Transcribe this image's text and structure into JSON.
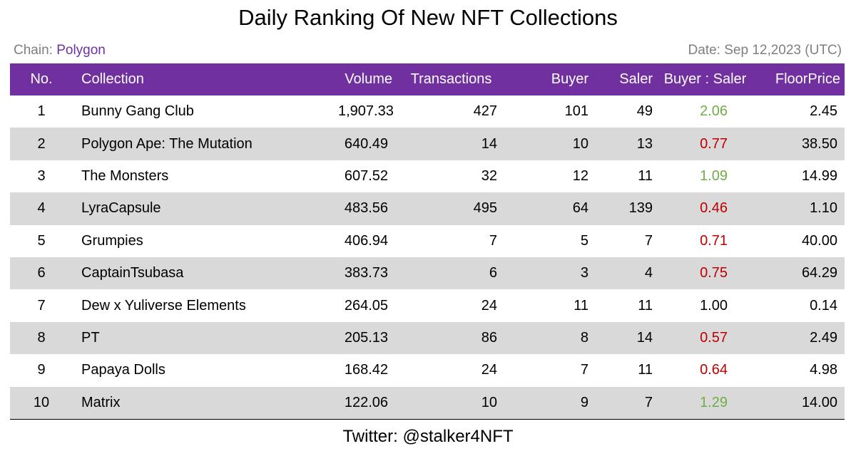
{
  "title": "Daily Ranking Of New NFT Collections",
  "chain": {
    "label": "Chain: ",
    "value": "Polygon"
  },
  "date": "Date: Sep 12,2023 (UTC)",
  "colors": {
    "header_bg": "#7030a0",
    "chain_value": "#7030a0",
    "meta_text": "#7f7f7f",
    "row_alt": "#d9d9d9",
    "ratio_up": "#70ad47",
    "ratio_down": "#c00000"
  },
  "table": {
    "columns": [
      "No.",
      "Collection",
      "Volume",
      "Transactions",
      "Buyer",
      "Saler",
      "Buyer : Saler",
      "FloorPrice"
    ],
    "rows": [
      {
        "no": "1",
        "collection": "Bunny Gang Club",
        "volume": "1,907.33",
        "transactions": "427",
        "buyer": "101",
        "saler": "49",
        "ratio": "2.06",
        "trend": "up",
        "floor": "2.45"
      },
      {
        "no": "2",
        "collection": "Polygon Ape: The Mutation",
        "volume": "640.49",
        "transactions": "14",
        "buyer": "10",
        "saler": "13",
        "ratio": "0.77",
        "trend": "down",
        "floor": "38.50"
      },
      {
        "no": "3",
        "collection": "The Monsters",
        "volume": "607.52",
        "transactions": "32",
        "buyer": "12",
        "saler": "11",
        "ratio": "1.09",
        "trend": "up",
        "floor": "14.99"
      },
      {
        "no": "4",
        "collection": "LyraCapsule",
        "volume": "483.56",
        "transactions": "495",
        "buyer": "64",
        "saler": "139",
        "ratio": "0.46",
        "trend": "down",
        "floor": "1.10"
      },
      {
        "no": "5",
        "collection": "Grumpies",
        "volume": "406.94",
        "transactions": "7",
        "buyer": "5",
        "saler": "7",
        "ratio": "0.71",
        "trend": "down",
        "floor": "40.00"
      },
      {
        "no": "6",
        "collection": "CaptainTsubasa",
        "volume": "383.73",
        "transactions": "6",
        "buyer": "3",
        "saler": "4",
        "ratio": "0.75",
        "trend": "down",
        "floor": "64.29"
      },
      {
        "no": "7",
        "collection": "Dew x Yuliverse Elements",
        "volume": "264.05",
        "transactions": "24",
        "buyer": "11",
        "saler": "11",
        "ratio": "1.00",
        "trend": "even",
        "floor": "0.14"
      },
      {
        "no": "8",
        "collection": "PT",
        "volume": "205.13",
        "transactions": "86",
        "buyer": "8",
        "saler": "14",
        "ratio": "0.57",
        "trend": "down",
        "floor": "2.49"
      },
      {
        "no": "9",
        "collection": "Papaya Dolls",
        "volume": "168.42",
        "transactions": "24",
        "buyer": "7",
        "saler": "11",
        "ratio": "0.64",
        "trend": "down",
        "floor": "4.98"
      },
      {
        "no": "10",
        "collection": "Matrix",
        "volume": "122.06",
        "transactions": "10",
        "buyer": "9",
        "saler": "7",
        "ratio": "1.29",
        "trend": "up",
        "floor": "14.00"
      }
    ]
  },
  "footer": "Twitter: @stalker4NFT"
}
